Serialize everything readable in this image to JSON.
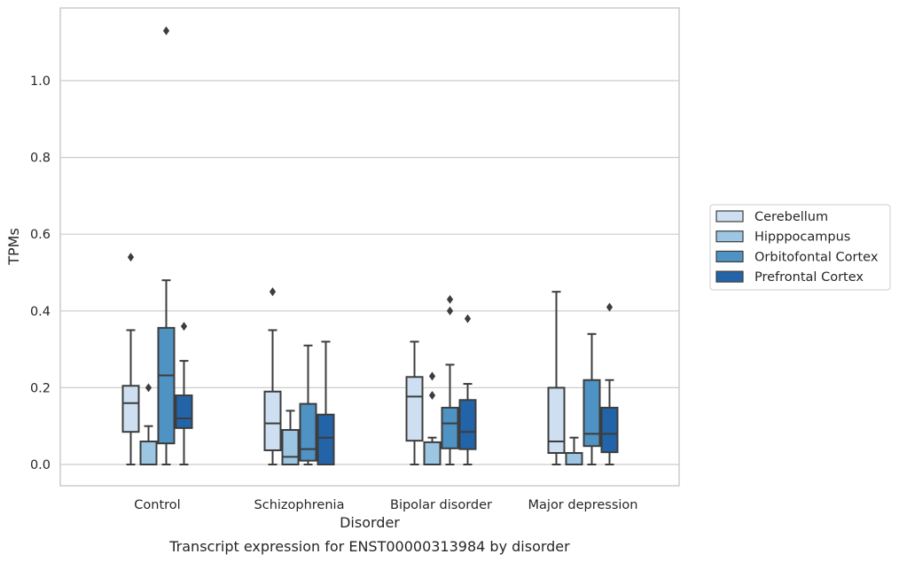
{
  "chart_data": {
    "type": "box",
    "title": "",
    "caption": "Transcript expression for ENST00000313984 by disorder",
    "xlabel": "Disorder",
    "ylabel": "TPMs",
    "ylim": [
      -0.055,
      1.2
    ],
    "yticks": [
      0.0,
      0.2,
      0.4,
      0.6,
      0.8,
      1.0
    ],
    "ytick_labels": [
      "0.0",
      "0.2",
      "0.4",
      "0.6",
      "0.8",
      "1.0"
    ],
    "grid": "horizontal",
    "legend_position": "right",
    "categories": [
      "Control",
      "Schizophrenia",
      "Bipolar disorder",
      "Major depression"
    ],
    "series": [
      {
        "name": "Cerebellum",
        "color": "#cddff1",
        "boxes": [
          {
            "whisker_low": 0.0,
            "q1": 0.085,
            "median": 0.16,
            "q3": 0.205,
            "whisker_high": 0.35,
            "outliers": [
              0.54
            ]
          },
          {
            "whisker_low": 0.0,
            "q1": 0.037,
            "median": 0.107,
            "q3": 0.19,
            "whisker_high": 0.35,
            "outliers": [
              0.45
            ]
          },
          {
            "whisker_low": 0.0,
            "q1": 0.062,
            "median": 0.177,
            "q3": 0.228,
            "whisker_high": 0.32,
            "outliers": []
          },
          {
            "whisker_low": 0.0,
            "q1": 0.03,
            "median": 0.06,
            "q3": 0.2,
            "whisker_high": 0.45,
            "outliers": []
          }
        ]
      },
      {
        "name": "Hipppocampus",
        "color": "#9cc6e2",
        "boxes": [
          {
            "whisker_low": 0.0,
            "q1": 0.0,
            "median": 0.0,
            "q3": 0.06,
            "whisker_high": 0.1,
            "outliers": [
              0.2
            ]
          },
          {
            "whisker_low": 0.0,
            "q1": 0.0,
            "median": 0.02,
            "q3": 0.09,
            "whisker_high": 0.14,
            "outliers": []
          },
          {
            "whisker_low": 0.0,
            "q1": 0.0,
            "median": 0.0,
            "q3": 0.058,
            "whisker_high": 0.07,
            "outliers": [
              0.18,
              0.23
            ]
          },
          {
            "whisker_low": 0.0,
            "q1": 0.0,
            "median": 0.0,
            "q3": 0.03,
            "whisker_high": 0.07,
            "outliers": []
          }
        ]
      },
      {
        "name": "Orbitofontal Cortex",
        "color": "#4e93c3",
        "boxes": [
          {
            "whisker_low": 0.0,
            "q1": 0.055,
            "median": 0.232,
            "q3": 0.356,
            "whisker_high": 0.48,
            "outliers": [
              1.13
            ]
          },
          {
            "whisker_low": 0.0,
            "q1": 0.01,
            "median": 0.04,
            "q3": 0.158,
            "whisker_high": 0.31,
            "outliers": []
          },
          {
            "whisker_low": 0.0,
            "q1": 0.042,
            "median": 0.107,
            "q3": 0.148,
            "whisker_high": 0.26,
            "outliers": [
              0.4,
              0.43
            ]
          },
          {
            "whisker_low": 0.0,
            "q1": 0.048,
            "median": 0.08,
            "q3": 0.22,
            "whisker_high": 0.34,
            "outliers": []
          }
        ]
      },
      {
        "name": "Prefrontal Cortex",
        "color": "#2364a8",
        "boxes": [
          {
            "whisker_low": 0.0,
            "q1": 0.095,
            "median": 0.12,
            "q3": 0.18,
            "whisker_high": 0.27,
            "outliers": [
              0.36
            ]
          },
          {
            "whisker_low": 0.0,
            "q1": 0.0,
            "median": 0.07,
            "q3": 0.13,
            "whisker_high": 0.32,
            "outliers": []
          },
          {
            "whisker_low": 0.0,
            "q1": 0.04,
            "median": 0.085,
            "q3": 0.168,
            "whisker_high": 0.21,
            "outliers": [
              0.38
            ]
          },
          {
            "whisker_low": 0.0,
            "q1": 0.032,
            "median": 0.08,
            "q3": 0.148,
            "whisker_high": 0.22,
            "outliers": [
              0.41
            ]
          }
        ]
      }
    ]
  }
}
